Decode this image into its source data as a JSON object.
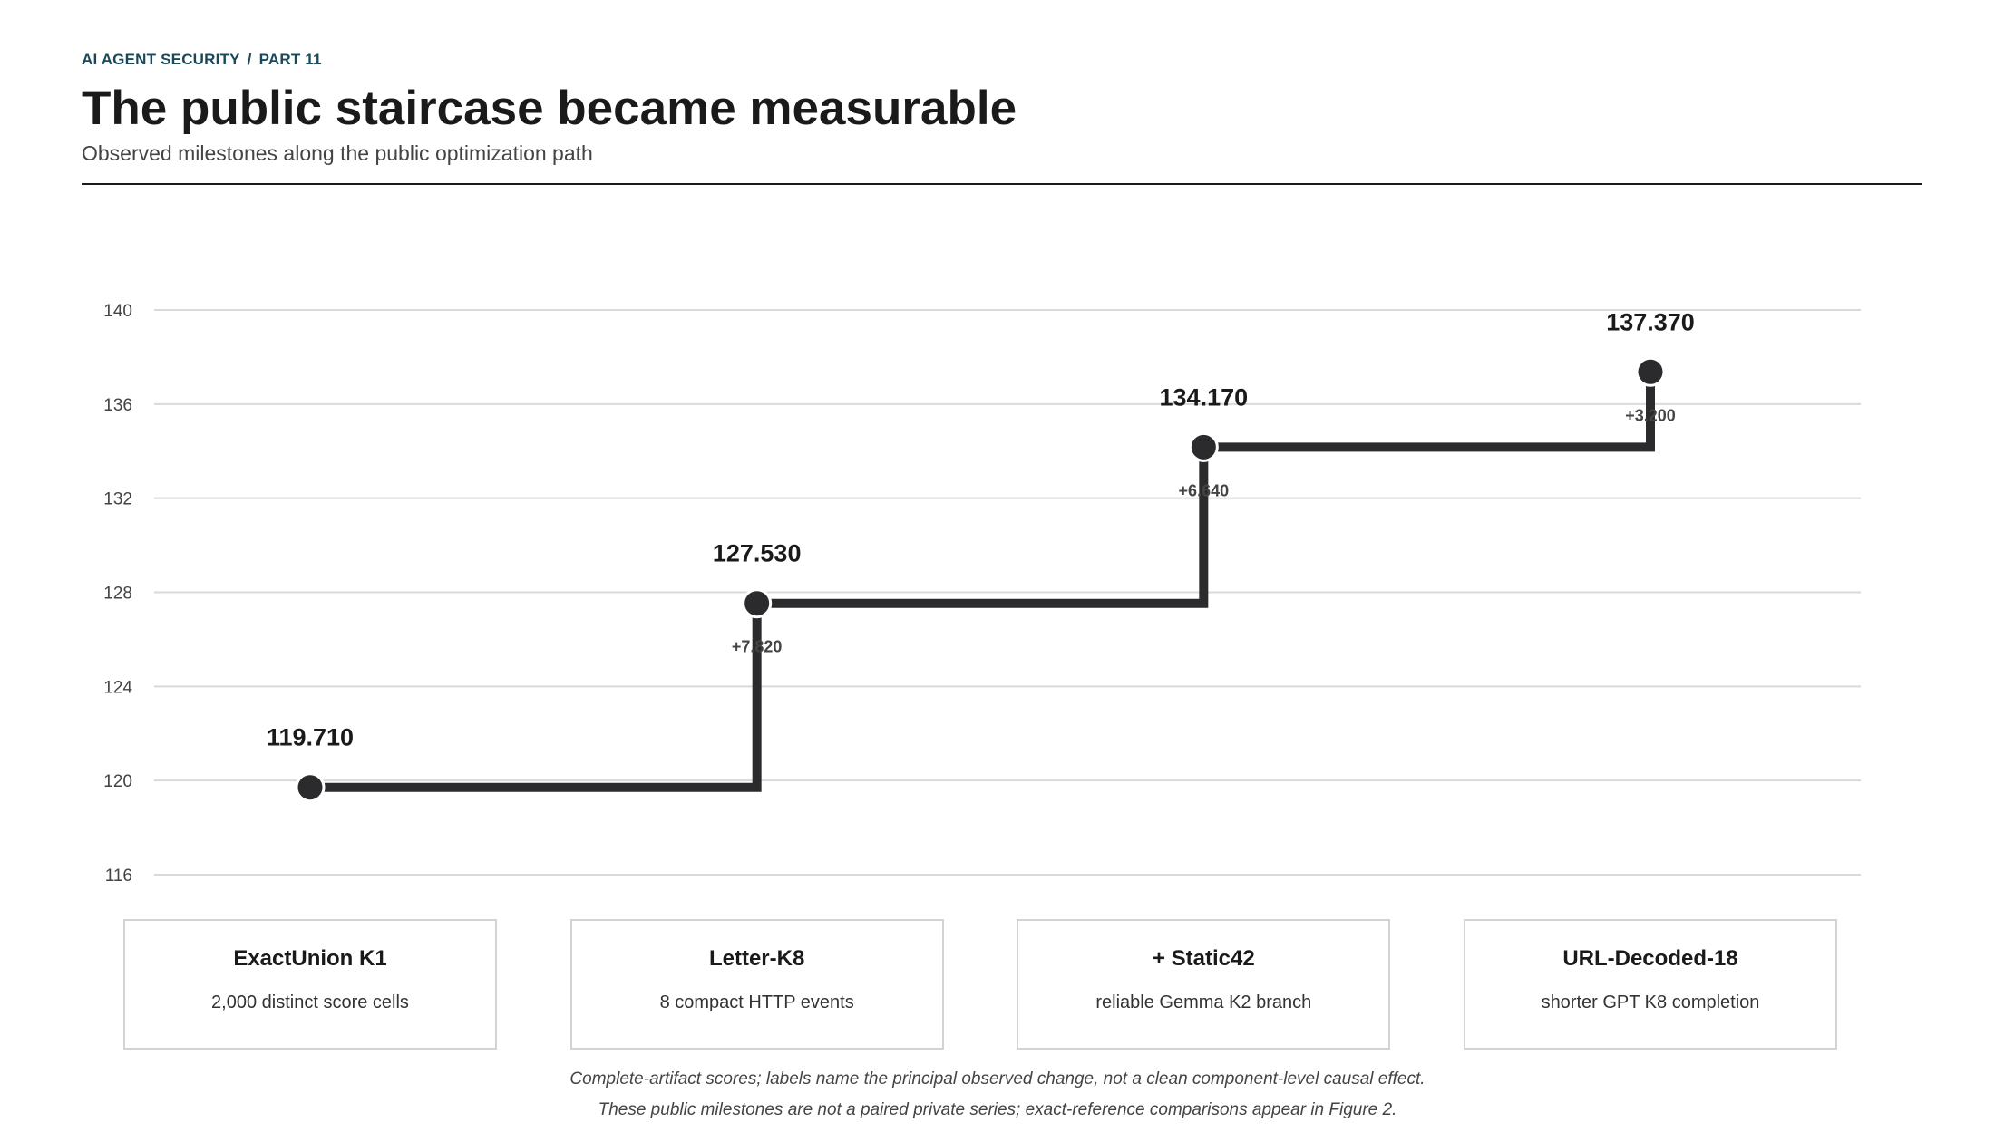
{
  "header": {
    "kicker_series": "AI AGENT SECURITY",
    "kicker_separator": "/",
    "kicker_part": "PART 11",
    "title": "The public staircase became measurable",
    "subtitle": "Observed milestones along the public optimization path"
  },
  "chart_data": {
    "type": "line",
    "step": true,
    "title": "",
    "xlabel": "",
    "ylabel": "",
    "ylim": [
      116,
      140
    ],
    "yticks": [
      116,
      120,
      124,
      128,
      132,
      136,
      140
    ],
    "grid": true,
    "categories": [
      "ExactUnion K1",
      "Letter-K8",
      "+ Static42",
      "URL-Decoded-18"
    ],
    "values": [
      119.71,
      127.53,
      134.17,
      137.37
    ],
    "value_labels": [
      "119.710",
      "127.530",
      "134.170",
      "137.370"
    ],
    "delta_labels": [
      "",
      "+7.820",
      "+6.640",
      "+3.200"
    ],
    "descriptions": [
      "2,000 distinct score cells",
      "8 compact HTTP events",
      "reliable Gemma K2 branch",
      "shorter GPT K8 completion"
    ],
    "colors": {
      "line": "#2b2b2e",
      "grid": "#d9d9d9",
      "axis_text": "#444444"
    }
  },
  "footnotes": [
    "Complete-artifact scores; labels name the principal observed change, not a clean component-level causal effect.",
    "These public milestones are not a paired private series; exact-reference comparisons appear in Figure 2."
  ]
}
